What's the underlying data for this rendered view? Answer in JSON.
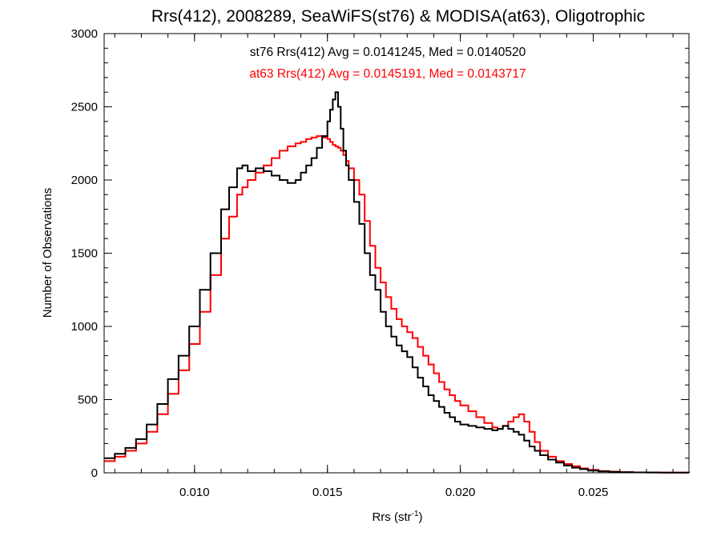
{
  "chart_data": {
    "type": "line",
    "step": true,
    "title": "Rrs(412), 2008289, SeaWiFS(st76) & MODISA(at63), Oligotrophic",
    "xlabel": {
      "main": "Rrs (str",
      "sup": "-1",
      "close": ")"
    },
    "ylabel": "Number of Observations",
    "xlim": [
      0.0066,
      0.0286
    ],
    "ylim": [
      0,
      3000
    ],
    "x_ticks": [
      0.01,
      0.015,
      0.02,
      0.025
    ],
    "x_tick_labels": [
      "0.010",
      "0.015",
      "0.020",
      "0.025"
    ],
    "y_ticks": [
      0,
      500,
      1000,
      1500,
      2000,
      2500,
      3000
    ],
    "y_tick_labels": [
      "0",
      "500",
      "1000",
      "1500",
      "2000",
      "2500",
      "3000"
    ],
    "grid": false,
    "stats": [
      {
        "text": "st76 Rrs(412) Avg = 0.0141245, Med = 0.0140520",
        "color": "#000000"
      },
      {
        "text": "at63 Rrs(412) Avg = 0.0145191, Med = 0.0143717",
        "color": "#ff0000"
      }
    ],
    "series": [
      {
        "color": "#000000",
        "x": [
          0.0066,
          0.007,
          0.0074,
          0.0078,
          0.0082,
          0.0086,
          0.009,
          0.0094,
          0.0098,
          0.0102,
          0.0106,
          0.011,
          0.0113,
          0.0116,
          0.0118,
          0.012,
          0.0123,
          0.0126,
          0.0129,
          0.0132,
          0.0135,
          0.0138,
          0.014,
          0.0142,
          0.0144,
          0.0146,
          0.0148,
          0.015,
          0.0151,
          0.0152,
          0.0153,
          0.0154,
          0.0155,
          0.0156,
          0.0157,
          0.0158,
          0.016,
          0.0162,
          0.0164,
          0.0166,
          0.0168,
          0.017,
          0.0172,
          0.0174,
          0.0176,
          0.0178,
          0.018,
          0.0182,
          0.0184,
          0.0186,
          0.0188,
          0.019,
          0.0192,
          0.0194,
          0.0196,
          0.0198,
          0.02,
          0.0203,
          0.0206,
          0.0209,
          0.0212,
          0.0214,
          0.0216,
          0.0218,
          0.022,
          0.0222,
          0.0224,
          0.0226,
          0.0228,
          0.023,
          0.0233,
          0.0236,
          0.0239,
          0.0242,
          0.0245,
          0.0248,
          0.0252,
          0.0256,
          0.026,
          0.0265,
          0.027,
          0.0275,
          0.028,
          0.0286
        ],
        "values": [
          100,
          130,
          170,
          230,
          330,
          470,
          640,
          800,
          1000,
          1250,
          1500,
          1800,
          1950,
          2080,
          2100,
          2060,
          2080,
          2060,
          2030,
          2000,
          1980,
          2000,
          2050,
          2100,
          2150,
          2220,
          2300,
          2400,
          2480,
          2550,
          2600,
          2500,
          2350,
          2200,
          2100,
          2000,
          1850,
          1700,
          1500,
          1350,
          1250,
          1100,
          1000,
          930,
          870,
          830,
          790,
          720,
          650,
          590,
          530,
          490,
          450,
          410,
          380,
          350,
          330,
          320,
          310,
          300,
          290,
          300,
          320,
          300,
          280,
          260,
          220,
          180,
          150,
          120,
          90,
          70,
          50,
          35,
          25,
          15,
          10,
          6,
          4,
          3,
          2,
          1,
          1,
          0
        ]
      },
      {
        "color": "#ff0000",
        "x": [
          0.0066,
          0.007,
          0.0074,
          0.0078,
          0.0082,
          0.0086,
          0.009,
          0.0094,
          0.0098,
          0.0102,
          0.0106,
          0.011,
          0.0113,
          0.0116,
          0.0118,
          0.012,
          0.0123,
          0.0126,
          0.0129,
          0.0132,
          0.0135,
          0.0138,
          0.014,
          0.0142,
          0.0144,
          0.0146,
          0.0148,
          0.015,
          0.0151,
          0.0152,
          0.0153,
          0.0154,
          0.0155,
          0.0156,
          0.0157,
          0.0158,
          0.016,
          0.0162,
          0.0164,
          0.0166,
          0.0168,
          0.017,
          0.0172,
          0.0174,
          0.0176,
          0.0178,
          0.018,
          0.0182,
          0.0184,
          0.0186,
          0.0188,
          0.019,
          0.0192,
          0.0194,
          0.0196,
          0.0198,
          0.02,
          0.0203,
          0.0206,
          0.0209,
          0.0212,
          0.0214,
          0.0216,
          0.0218,
          0.022,
          0.0222,
          0.0224,
          0.0226,
          0.0228,
          0.023,
          0.0233,
          0.0236,
          0.0239,
          0.0242,
          0.0245,
          0.0248,
          0.0252,
          0.0256,
          0.026,
          0.0265,
          0.027,
          0.0275,
          0.028,
          0.0286
        ],
        "values": [
          80,
          110,
          150,
          200,
          280,
          400,
          540,
          700,
          880,
          1100,
          1350,
          1600,
          1750,
          1900,
          1950,
          2000,
          2050,
          2100,
          2150,
          2200,
          2230,
          2250,
          2260,
          2280,
          2290,
          2300,
          2290,
          2280,
          2260,
          2240,
          2230,
          2220,
          2200,
          2170,
          2130,
          2080,
          2000,
          1900,
          1720,
          1550,
          1400,
          1300,
          1200,
          1120,
          1050,
          1000,
          960,
          920,
          860,
          800,
          740,
          680,
          620,
          570,
          530,
          490,
          460,
          420,
          380,
          340,
          310,
          300,
          320,
          350,
          380,
          400,
          350,
          280,
          210,
          150,
          110,
          80,
          60,
          45,
          30,
          20,
          12,
          8,
          5,
          3,
          2,
          1,
          1,
          0
        ]
      }
    ]
  }
}
